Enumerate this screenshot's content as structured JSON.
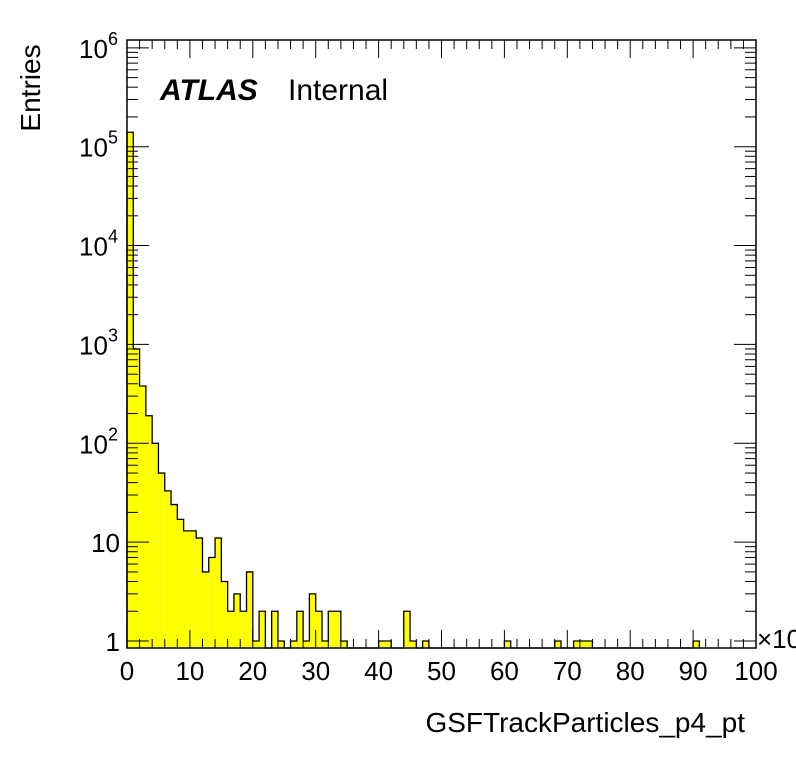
{
  "chart_data": {
    "type": "bar",
    "histogram": true,
    "xlabel": "GSFTrackParticles_p4_pt",
    "ylabel": "Entries",
    "x_multiplier_label": "×10",
    "xlim": [
      0,
      100
    ],
    "ylim": [
      0.85,
      1200000
    ],
    "yscale": "log",
    "bin_width": 1,
    "x_ticks": [
      "0",
      "10",
      "20",
      "30",
      "40",
      "50",
      "60",
      "70",
      "80",
      "90",
      "100"
    ],
    "y_ticks": [
      {
        "base": "1",
        "exp": "",
        "value": 1
      },
      {
        "base": "10",
        "exp": "",
        "value": 10
      },
      {
        "base": "10",
        "exp": "2",
        "value": 100
      },
      {
        "base": "10",
        "exp": "3",
        "value": 1000
      },
      {
        "base": "10",
        "exp": "4",
        "value": 10000
      },
      {
        "base": "10",
        "exp": "5",
        "value": 100000
      },
      {
        "base": "10",
        "exp": "6",
        "value": 1000000
      }
    ],
    "bins": [
      [
        0,
        140000
      ],
      [
        1,
        900
      ],
      [
        2,
        380
      ],
      [
        3,
        190
      ],
      [
        4,
        100
      ],
      [
        5,
        50
      ],
      [
        6,
        33
      ],
      [
        7,
        24
      ],
      [
        8,
        17
      ],
      [
        9,
        13
      ],
      [
        10,
        13
      ],
      [
        11,
        11
      ],
      [
        12,
        5
      ],
      [
        13,
        7
      ],
      [
        14,
        11
      ],
      [
        15,
        4
      ],
      [
        16,
        2
      ],
      [
        17,
        3
      ],
      [
        18,
        2
      ],
      [
        19,
        5
      ],
      [
        20,
        1
      ],
      [
        21,
        2
      ],
      [
        22,
        0
      ],
      [
        23,
        2
      ],
      [
        24,
        1
      ],
      [
        25,
        0
      ],
      [
        26,
        1
      ],
      [
        27,
        2
      ],
      [
        28,
        1
      ],
      [
        29,
        3
      ],
      [
        30,
        2
      ],
      [
        31,
        1
      ],
      [
        32,
        2
      ],
      [
        33,
        2
      ],
      [
        34,
        1
      ],
      [
        40,
        1
      ],
      [
        41,
        1
      ],
      [
        44,
        2
      ],
      [
        45,
        1
      ],
      [
        47,
        1
      ],
      [
        60,
        1
      ],
      [
        68,
        1
      ],
      [
        71,
        1
      ],
      [
        72,
        1
      ],
      [
        73,
        1
      ],
      [
        90,
        1
      ]
    ],
    "fill_color": "#ffff00",
    "line_color": "#000000"
  },
  "labels": {
    "atlas": "ATLAS",
    "internal": "Internal"
  }
}
